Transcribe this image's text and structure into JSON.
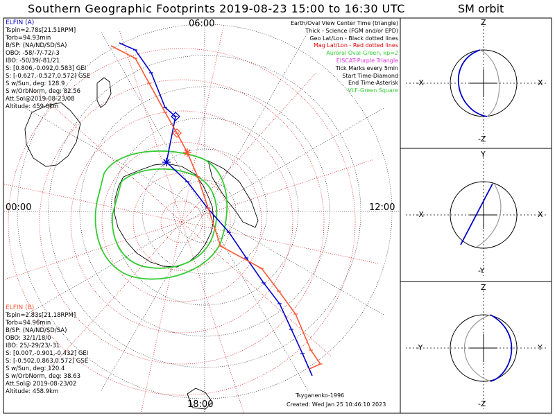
{
  "title": "Southern Geographic Footprints 2019-08-23 15:00 to 16:30 UTC",
  "sm_title": "SM orbit",
  "colors": {
    "a": "#0000cc",
    "b": "#ff5533",
    "aurora": "#33cc33",
    "grid_geo": "#000000",
    "grid_mag": "#dd0000",
    "eiscat": "#dd33dd"
  },
  "elfin_a": {
    "header": "ELFIN (A)",
    "lines": [
      "Tspin=2.78s[21.51RPM]",
      "Torb=94.93min",
      "B/SP: (NA/ND/SD/SA)",
      "OBO: -58/-7/-72/-3",
      "IBO: -50/39/-81/21",
      "S: [0.806,-0.092,0.583] GEI",
      "S: [-0.627,-0.527,0.572] GSE",
      "S w/Sun, deg: 128.9",
      "S w/OrbNorm, deg: 82.56",
      "Att.Sol@2019-08-23/08",
      "Altitude: 459.0km"
    ]
  },
  "elfin_b": {
    "header": "ELFIN (B)",
    "lines": [
      "Tspin=2.83s[21.18RPM]",
      "Torb=94.96min",
      "B/SP: (NA/ND/SD/SA)",
      "OBO: 32/1/18/0",
      "IBO: 25/-29/23/-31",
      "S: [0.007,-0.901,-0.432] GEI",
      "S: [-0.502,0.863,0.572] GSE",
      "S w/Sun, deg: 120.4",
      "S w/OrbNorm, deg: 38.63",
      "Att.Sol@ 2019-08-23/02",
      "Altitude: 458.9km"
    ]
  },
  "legend": [
    {
      "text": "Earth/Oval View Center Time (triangle)",
      "color": "#000000"
    },
    {
      "text": "Thick - Science (FGM and/or EPD)",
      "color": "#000000"
    },
    {
      "text": "Geo Lat/Lon - Black dotted lines",
      "color": "#000000"
    },
    {
      "text": "Mag Lat/Lon - Red dotted lines",
      "color": "#dd0000"
    },
    {
      "text": "Auroral Oval-Green, kp=2",
      "color": "#33cc33"
    },
    {
      "text": "EISCAT-Purple Triangle",
      "color": "#dd33dd"
    },
    {
      "text": "Tick Marks every 5min",
      "color": "#000000"
    },
    {
      "text": "Start Time-Diamond",
      "color": "#000000"
    },
    {
      "text": "End Time-Asterisk",
      "color": "#000000"
    },
    {
      "text": "VLF-Green Square",
      "color": "#33cc33"
    }
  ],
  "credit": "Tsyganenko-1996",
  "created": "Created: Wed Jan 25 10:46:10 2023",
  "chart_data": [
    {
      "type": "polar-map",
      "hour_labels": {
        "top": "06:00",
        "left": "00:00",
        "right": "12:00",
        "bottom": "18:00"
      },
      "series": [
        {
          "name": "ELFIN (A)",
          "points": [
            [
              172,
              62
            ],
            [
              195,
              72
            ],
            [
              218,
              105
            ],
            [
              238,
              155
            ],
            [
              253,
              168
            ],
            [
              240,
              234
            ],
            [
              270,
              262
            ],
            [
              299,
              300
            ],
            [
              330,
              335
            ],
            [
              355,
              372
            ],
            [
              380,
              408
            ],
            [
              403,
              438
            ],
            [
              420,
              475
            ],
            [
              436,
              510
            ],
            [
              450,
              542
            ]
          ]
        },
        {
          "name": "ELFIN (B)",
          "points": [
            [
              160,
              66
            ],
            [
              195,
              84
            ],
            [
              215,
              120
            ],
            [
              238,
              162
            ],
            [
              255,
              192
            ],
            [
              270,
              220
            ],
            [
              285,
              255
            ],
            [
              300,
              300
            ],
            [
              318,
              355
            ],
            [
              377,
              387
            ],
            [
              402,
              420
            ],
            [
              426,
              453
            ],
            [
              448,
              505
            ],
            [
              462,
              525
            ],
            [
              446,
              532
            ]
          ]
        }
      ]
    },
    {
      "type": "orbit-projection",
      "panels": [
        {
          "x_left": "-X",
          "x_right": "X",
          "y_top": "Z",
          "y_bottom": "-Z"
        },
        {
          "x_left": "-X",
          "x_right": "X",
          "y_top": "Y",
          "y_bottom": "-Y"
        },
        {
          "x_left": "-Y",
          "x_right": "Y",
          "y_top": "Z",
          "y_bottom": "-Z"
        }
      ]
    }
  ]
}
